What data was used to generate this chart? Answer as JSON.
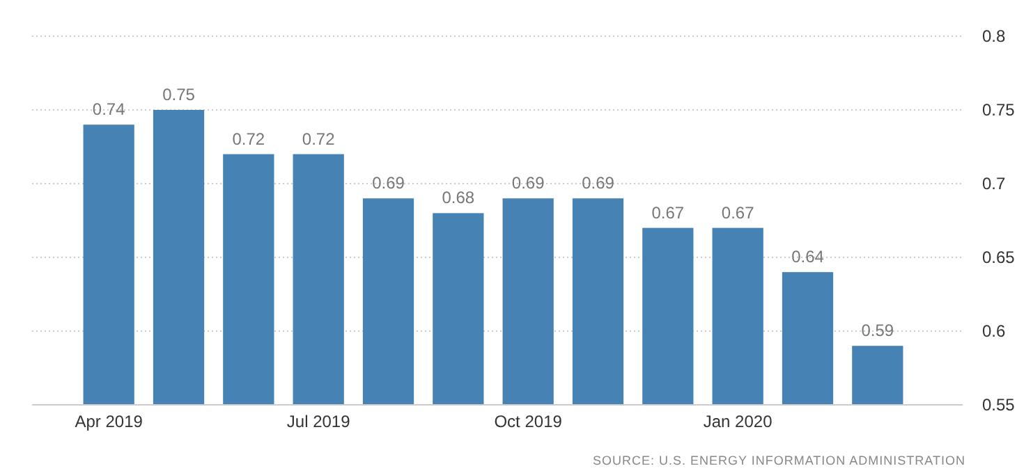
{
  "chart_data": {
    "type": "bar",
    "categories": [
      "Apr 2019",
      null,
      null,
      "Jul 2019",
      null,
      null,
      "Oct 2019",
      null,
      null,
      "Jan 2020",
      null,
      null
    ],
    "values": [
      0.74,
      0.75,
      0.72,
      0.72,
      0.69,
      0.68,
      0.69,
      0.69,
      0.67,
      0.67,
      0.64,
      0.59
    ],
    "color": "#4682b4",
    "ylim": [
      0.55,
      0.8
    ],
    "yticks": [
      0.55,
      0.6,
      0.65,
      0.7,
      0.75,
      0.8
    ],
    "grid": "y",
    "data_labels": true,
    "annotations": [
      "SOURCE: U.S. ENERGY INFORMATION ADMINISTRATION"
    ]
  }
}
